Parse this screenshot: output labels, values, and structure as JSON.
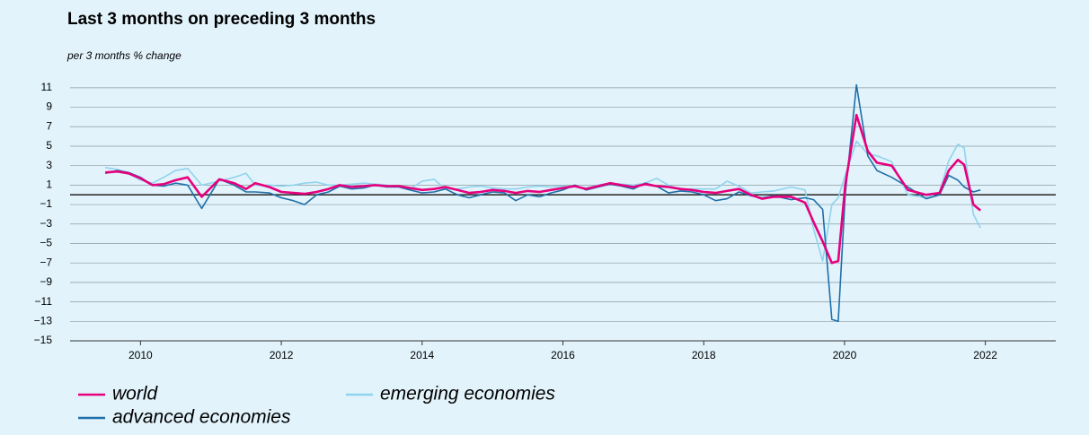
{
  "chart_data": {
    "type": "line",
    "title": "Last 3 months on preceding 3 months",
    "subtitle": "per 3 months % change",
    "x": [
      2010.0,
      2010.17,
      2010.33,
      2010.5,
      2010.67,
      2010.83,
      2011.0,
      2011.17,
      2011.37,
      2011.62,
      2011.83,
      2012.0,
      2012.13,
      2012.33,
      2012.5,
      2012.67,
      2012.83,
      2013.0,
      2013.17,
      2013.33,
      2013.5,
      2013.67,
      2013.83,
      2014.0,
      2014.17,
      2014.33,
      2014.5,
      2014.67,
      2014.83,
      2015.0,
      2015.17,
      2015.33,
      2015.5,
      2015.67,
      2015.83,
      2016.0,
      2016.17,
      2016.33,
      2016.5,
      2016.67,
      2016.83,
      2017.0,
      2017.17,
      2017.33,
      2017.5,
      2017.67,
      2017.83,
      2018.0,
      2018.17,
      2018.33,
      2018.5,
      2018.67,
      2018.83,
      2019.0,
      2019.17,
      2019.33,
      2019.5,
      2019.74,
      2019.94,
      2020.06,
      2020.19,
      2020.32,
      2020.41,
      2020.51,
      2020.67,
      2020.83,
      2020.96,
      2021.17,
      2021.4,
      2021.66,
      2021.85,
      2021.98,
      2022.11,
      2022.2,
      2022.33,
      2022.43
    ],
    "series": [
      {
        "name": "emerging economies",
        "color": "#8fd3ee",
        "values": [
          2.8,
          2.6,
          2.2,
          1.5,
          1.2,
          1.8,
          2.5,
          2.7,
          1.0,
          1.4,
          1.8,
          2.2,
          1.0,
          1.0,
          0.9,
          1.0,
          1.2,
          1.3,
          1.0,
          1.0,
          1.1,
          1.2,
          1.1,
          1.0,
          0.8,
          0.6,
          1.4,
          1.6,
          0.6,
          0.6,
          0.8,
          0.9,
          0.7,
          0.6,
          0.6,
          0.8,
          0.9,
          0.8,
          0.9,
          0.8,
          0.7,
          1.0,
          1.2,
          1.1,
          1.0,
          1.2,
          1.7,
          1.0,
          0.5,
          0.6,
          0.6,
          0.6,
          1.4,
          0.9,
          0.2,
          0.3,
          0.4,
          0.8,
          0.5,
          -3.5,
          -6.8,
          -1.0,
          -0.3,
          2.0,
          5.5,
          4.2,
          4.0,
          3.4,
          0.0,
          -0.3,
          0.3,
          3.5,
          5.2,
          4.8,
          -2.0,
          -3.4
        ]
      },
      {
        "name": "advanced economies",
        "color": "#1f6fa8",
        "values": [
          2.2,
          2.5,
          2.3,
          1.8,
          1.0,
          0.9,
          1.2,
          1.0,
          -1.4,
          1.6,
          1.0,
          0.3,
          0.3,
          0.2,
          -0.3,
          -0.6,
          -1.0,
          0.0,
          0.3,
          0.9,
          0.6,
          0.7,
          1.0,
          0.8,
          0.8,
          0.5,
          0.2,
          0.3,
          0.6,
          0.0,
          -0.3,
          0.0,
          0.3,
          0.2,
          -0.6,
          0.0,
          -0.2,
          0.2,
          0.5,
          1.0,
          0.5,
          0.8,
          1.1,
          0.9,
          0.6,
          1.2,
          0.9,
          0.2,
          0.4,
          0.3,
          0.0,
          -0.6,
          -0.4,
          0.3,
          -0.1,
          -0.3,
          -0.1,
          -0.5,
          -0.3,
          -0.5,
          -1.5,
          -12.8,
          -13.0,
          0.0,
          11.3,
          4.0,
          2.5,
          1.8,
          0.8,
          -0.4,
          0.0,
          2.0,
          1.5,
          0.8,
          0.3,
          0.5
        ]
      },
      {
        "name": "world",
        "color": "#e6007e",
        "values": [
          2.3,
          2.4,
          2.2,
          1.7,
          1.0,
          1.1,
          1.5,
          1.8,
          -0.2,
          1.6,
          1.2,
          0.6,
          1.2,
          0.8,
          0.3,
          0.2,
          0.1,
          0.3,
          0.6,
          1.0,
          0.8,
          0.9,
          1.0,
          0.9,
          0.9,
          0.7,
          0.5,
          0.6,
          0.8,
          0.5,
          0.2,
          0.3,
          0.5,
          0.4,
          0.2,
          0.4,
          0.3,
          0.5,
          0.7,
          0.9,
          0.6,
          0.9,
          1.2,
          1.0,
          0.8,
          1.1,
          0.9,
          0.8,
          0.6,
          0.5,
          0.3,
          0.2,
          0.4,
          0.6,
          0.0,
          -0.4,
          -0.2,
          -0.2,
          -0.8,
          -2.8,
          -4.8,
          -7.0,
          -6.8,
          1.0,
          8.2,
          4.5,
          3.3,
          3.0,
          0.5,
          0.0,
          0.2,
          2.5,
          3.6,
          3.1,
          -1.0,
          -1.6
        ]
      }
    ],
    "xlim": [
      2009.5,
      2023.5
    ],
    "xticks": [
      {
        "value": 2010.5,
        "label": "2010"
      },
      {
        "value": 2012.5,
        "label": "2012"
      },
      {
        "value": 2014.5,
        "label": "2014"
      },
      {
        "value": 2016.5,
        "label": "2016"
      },
      {
        "value": 2018.5,
        "label": "2018"
      },
      {
        "value": 2020.5,
        "label": "2020"
      },
      {
        "value": 2022.5,
        "label": "2022"
      }
    ],
    "ylim": [
      -15,
      12
    ],
    "yticks": [
      {
        "value": -15,
        "label": "−15"
      },
      {
        "value": -13,
        "label": "−13"
      },
      {
        "value": -11,
        "label": "−11"
      },
      {
        "value": -9,
        "label": "−9"
      },
      {
        "value": -7,
        "label": "−7"
      },
      {
        "value": -5,
        "label": "−5"
      },
      {
        "value": -3,
        "label": "−3"
      },
      {
        "value": -1,
        "label": "−1"
      },
      1,
      3,
      5,
      7,
      9,
      11
    ],
    "grid": true
  }
}
